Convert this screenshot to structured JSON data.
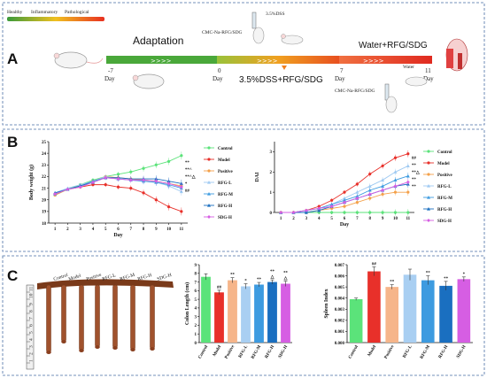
{
  "panel_labels": [
    "A",
    "B",
    "C"
  ],
  "timeline": {
    "legend_gradient": [
      "Healthy",
      "Inflammatory",
      "Pathological"
    ],
    "adaptation": "Adaptation",
    "day_labels": [
      "-7",
      "Day",
      "0",
      "Day",
      "7",
      "Day",
      "11",
      "Day"
    ],
    "phase_dss": "3.5%DSS+RFG/SDG",
    "phase_water": "Water+RFG/SDG",
    "gavage_label_top": "CMC-Na-RFG/SDG",
    "dss_label": "3.5%DSS",
    "gavage_label_bottom": "CMC-Na-RFG/SDG",
    "water_label": "Water",
    "colors": {
      "healthy": "#3a9a3a",
      "inflammatory": "#f0c020",
      "pathological": "#e83020"
    }
  },
  "chart_data": [
    {
      "type": "line",
      "xlabel": "Day",
      "ylabel": "Body weight (g)",
      "x": [
        1,
        2,
        3,
        4,
        5,
        6,
        7,
        8,
        9,
        10,
        11
      ],
      "ylim": [
        18,
        25
      ],
      "yticks": [
        "18",
        "19",
        "20",
        "21",
        "22",
        "23",
        "24",
        "25"
      ],
      "xticks": [
        "1",
        "2",
        "3",
        "4",
        "5",
        "6",
        "7",
        "8",
        "9",
        "10",
        "11"
      ],
      "series": [
        {
          "name": "Control",
          "color": "#5be37a",
          "marker": "circle",
          "values": [
            20.4,
            20.9,
            21.3,
            21.7,
            22.0,
            22.2,
            22.4,
            22.7,
            23.0,
            23.3,
            23.8
          ]
        },
        {
          "name": "Model",
          "color": "#e8302a",
          "marker": "circle",
          "values": [
            20.5,
            20.9,
            21.1,
            21.3,
            21.3,
            21.1,
            21.0,
            20.6,
            20.0,
            19.4,
            19.0
          ]
        },
        {
          "name": "Positive",
          "color": "#f4a14a",
          "marker": "circle",
          "values": [
            20.4,
            20.9,
            21.2,
            21.6,
            22.0,
            21.9,
            21.8,
            21.7,
            21.6,
            21.4,
            21.2
          ]
        },
        {
          "name": "RFG-L",
          "color": "#9fcaf2",
          "marker": "triangle",
          "values": [
            20.6,
            21.0,
            21.3,
            21.6,
            22.0,
            21.8,
            21.7,
            21.6,
            21.5,
            21.2,
            20.7
          ]
        },
        {
          "name": "RFG-M",
          "color": "#3d9be0",
          "marker": "triangle",
          "values": [
            20.5,
            20.9,
            21.2,
            21.6,
            21.9,
            21.8,
            21.7,
            21.6,
            21.5,
            21.3,
            21.0
          ]
        },
        {
          "name": "RFG-H",
          "color": "#1a6fc0",
          "marker": "triangle",
          "values": [
            20.6,
            20.9,
            21.2,
            21.5,
            21.9,
            21.9,
            21.8,
            21.8,
            21.8,
            21.6,
            21.4
          ]
        },
        {
          "name": "SDG-H",
          "color": "#d65ee3",
          "marker": "diamond",
          "values": [
            20.5,
            20.9,
            21.1,
            21.5,
            21.9,
            21.8,
            21.7,
            21.7,
            21.6,
            21.4,
            21.1
          ]
        }
      ],
      "end_annotations": [
        "**",
        "**^",
        "**^△",
        "*",
        "##"
      ]
    },
    {
      "type": "line",
      "xlabel": "Day",
      "ylabel": "DAI",
      "x": [
        1,
        2,
        3,
        4,
        5,
        6,
        7,
        8,
        9,
        10,
        11
      ],
      "ylim": [
        0,
        3.5
      ],
      "yticks": [
        "0",
        "1",
        "2",
        "3"
      ],
      "xticks": [
        "1",
        "2",
        "3",
        "4",
        "5",
        "6",
        "7",
        "8",
        "9",
        "10",
        "11"
      ],
      "series": [
        {
          "name": "Control",
          "color": "#5be37a",
          "marker": "circle",
          "values": [
            0,
            0,
            0,
            0,
            0,
            0,
            0,
            0,
            0,
            0,
            0
          ]
        },
        {
          "name": "Model",
          "color": "#e8302a",
          "marker": "circle",
          "values": [
            0,
            0,
            0.1,
            0.3,
            0.6,
            1.0,
            1.4,
            1.9,
            2.3,
            2.7,
            2.9
          ]
        },
        {
          "name": "Positive",
          "color": "#f4a14a",
          "marker": "circle",
          "values": [
            0,
            0,
            0,
            0.1,
            0.2,
            0.3,
            0.5,
            0.7,
            0.9,
            1.0,
            1.0
          ]
        },
        {
          "name": "RFG-L",
          "color": "#9fcaf2",
          "marker": "triangle",
          "values": [
            0,
            0,
            0.1,
            0.2,
            0.4,
            0.7,
            1.0,
            1.3,
            1.6,
            2.0,
            2.3
          ]
        },
        {
          "name": "RFG-M",
          "color": "#3d9be0",
          "marker": "triangle",
          "values": [
            0,
            0,
            0.1,
            0.2,
            0.4,
            0.6,
            0.8,
            1.1,
            1.3,
            1.6,
            1.8
          ]
        },
        {
          "name": "RFG-H",
          "color": "#1a6fc0",
          "marker": "triangle",
          "values": [
            0,
            0,
            0,
            0.1,
            0.3,
            0.5,
            0.7,
            0.9,
            1.1,
            1.3,
            1.4
          ]
        },
        {
          "name": "SDG-H",
          "color": "#d65ee3",
          "marker": "diamond",
          "values": [
            0,
            0,
            0.1,
            0.2,
            0.3,
            0.5,
            0.7,
            0.9,
            1.1,
            1.3,
            1.5
          ]
        }
      ],
      "end_annotations": [
        "##",
        "**",
        "**△",
        "**",
        "**"
      ]
    },
    {
      "type": "bar",
      "ylabel": "Colon Length (cm)",
      "categories": [
        "Control",
        "Model",
        "Positive",
        "RFG-L",
        "RFG-M",
        "RFG-H",
        "SDG-H"
      ],
      "values": [
        7.6,
        5.8,
        7.2,
        6.5,
        6.7,
        7.0,
        6.8
      ],
      "errors": [
        0.35,
        0.25,
        0.3,
        0.3,
        0.25,
        0.25,
        0.3
      ],
      "annotations": [
        "",
        "##",
        "**",
        "*",
        "**",
        "**\n△",
        "**\n△"
      ],
      "ylim": [
        0,
        9
      ],
      "yticks": [
        "0",
        "1",
        "2",
        "3",
        "4",
        "5",
        "6",
        "7",
        "8",
        "9"
      ],
      "colors": [
        "#5be37a",
        "#e8302a",
        "#f6b58a",
        "#a9cff2",
        "#3d9be0",
        "#1a6fc0",
        "#d65ee3"
      ]
    },
    {
      "type": "bar",
      "ylabel": "Spleen Index",
      "categories": [
        "Control",
        "Model",
        "Positive",
        "RFG-L",
        "RFG-M",
        "RFG-H",
        "SDG-H"
      ],
      "values": [
        0.0039,
        0.0064,
        0.005,
        0.0061,
        0.0056,
        0.0051,
        0.0057
      ],
      "errors": [
        0.0001,
        0.0004,
        0.0002,
        0.0005,
        0.0004,
        0.0004,
        0.0002
      ],
      "annotations": [
        "",
        "##",
        "**",
        "",
        "**",
        "**",
        "*"
      ],
      "ylim": [
        0,
        0.007
      ],
      "yticks": [
        "0.000",
        "0.001",
        "0.002",
        "0.003",
        "0.004",
        "0.005",
        "0.006",
        "0.007"
      ],
      "colors": [
        "#5be37a",
        "#e8302a",
        "#f6b58a",
        "#a9cff2",
        "#3d9be0",
        "#1a6fc0",
        "#d65ee3"
      ]
    }
  ],
  "colon_photo": {
    "labels": [
      "Control",
      "Model",
      "Positive",
      "RFG-L",
      "RFG-M",
      "RFG-H",
      "SDG-H"
    ],
    "ruler_marks": [
      "1",
      "2",
      "3",
      "4",
      "5",
      "6",
      "7",
      "8",
      "9",
      "10",
      "11"
    ]
  }
}
